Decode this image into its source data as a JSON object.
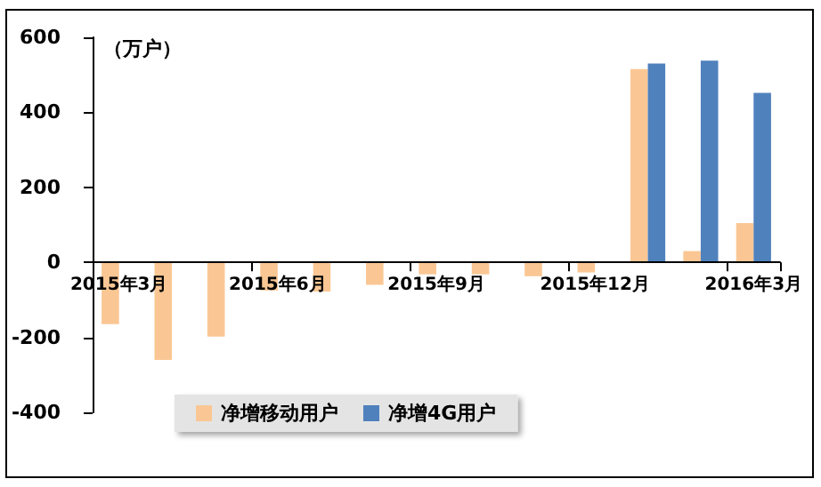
{
  "chart_data": {
    "type": "bar",
    "ylabel": "（万户）",
    "categories": [
      "2015年3月",
      null,
      null,
      "2015年6月",
      null,
      null,
      "2015年9月",
      null,
      null,
      "2015年12月",
      null,
      null,
      "2016年3月"
    ],
    "series": [
      {
        "name": "净增移动用户",
        "color": "#fac794",
        "values": [
          -165,
          -260,
          -198,
          -75,
          -78,
          -60,
          -32,
          -32,
          -37,
          -27,
          515,
          30,
          105
        ]
      },
      {
        "name": "净增4G用户",
        "color": "#4f81bd",
        "values": [
          null,
          null,
          null,
          null,
          null,
          null,
          null,
          null,
          null,
          null,
          530,
          538,
          452
        ]
      }
    ],
    "ylim": [
      -400,
      600
    ],
    "yticks": [
      -400,
      -200,
      0,
      200,
      400,
      600
    ],
    "grid": false,
    "legend": "bottom left"
  }
}
